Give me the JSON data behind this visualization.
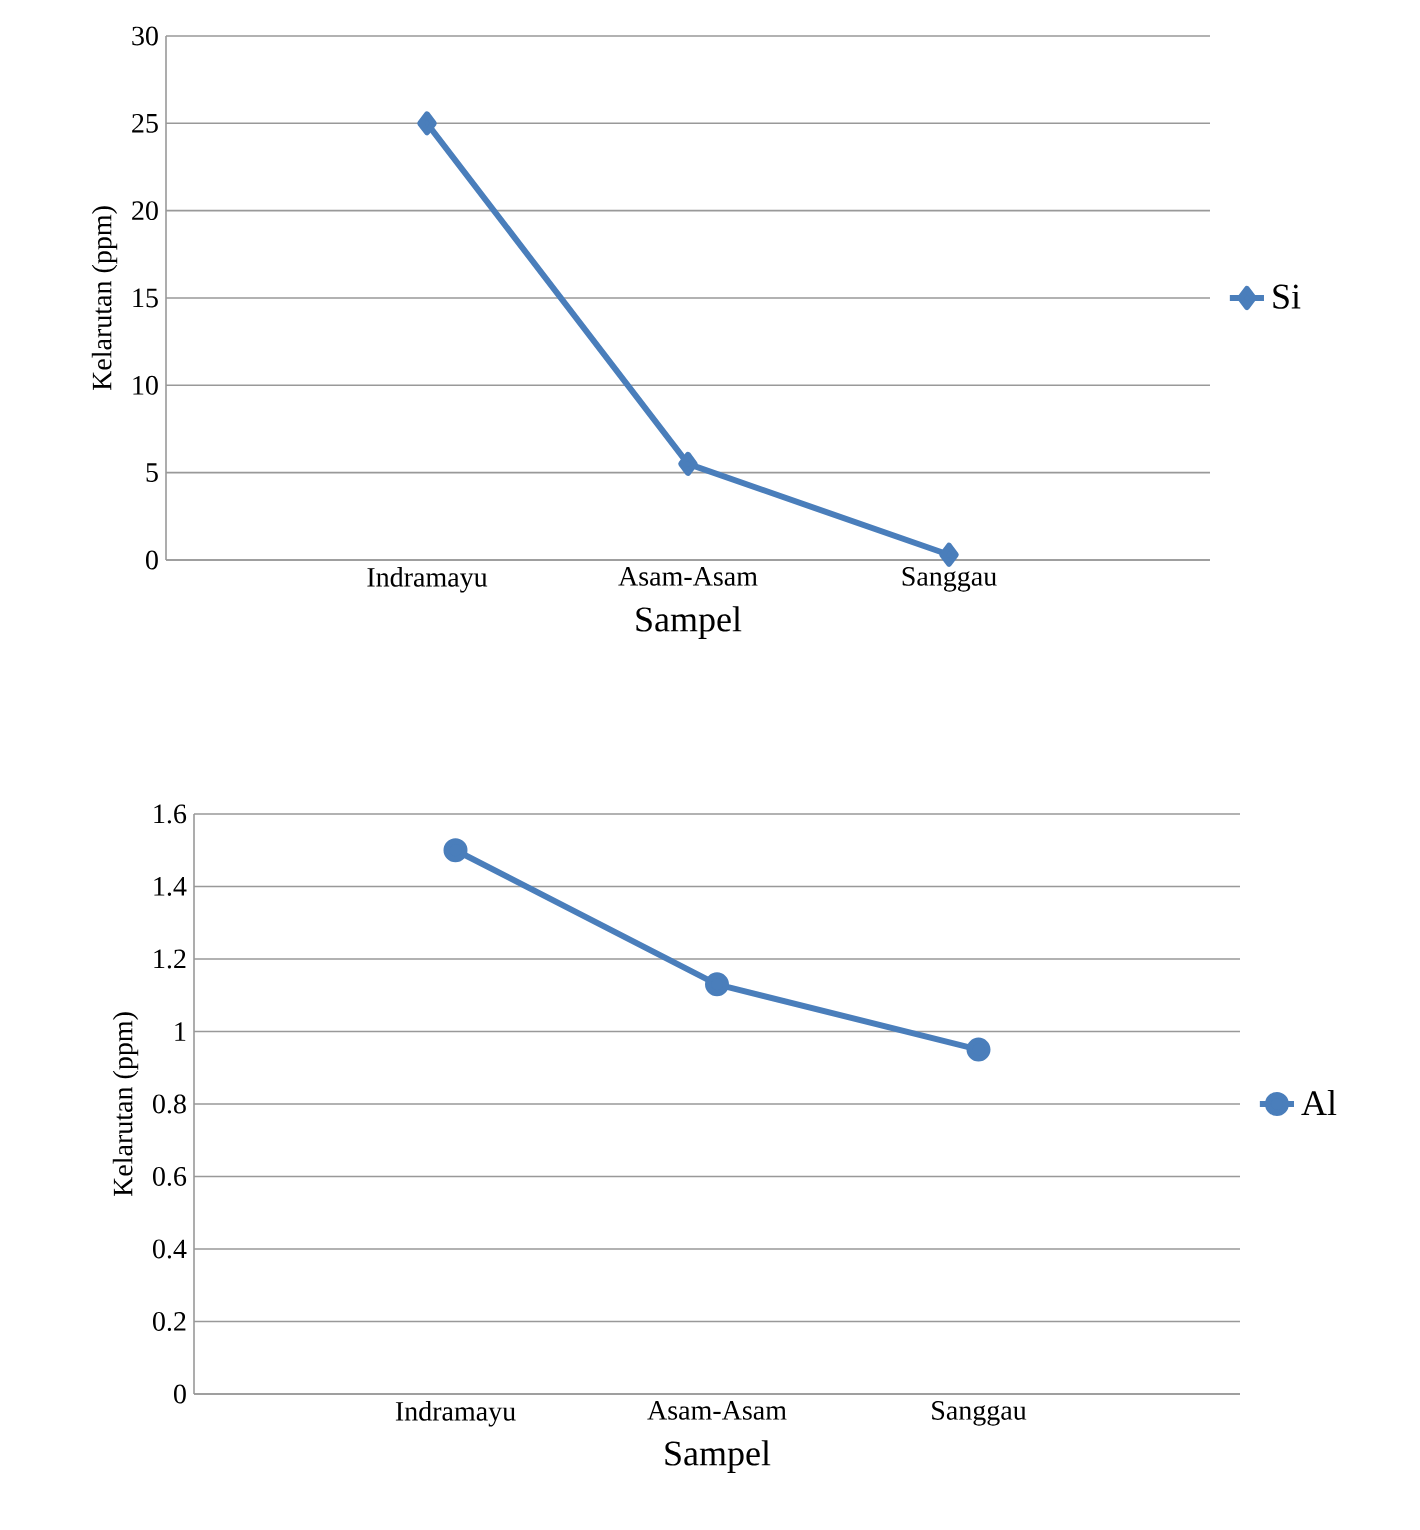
{
  "chart_data": [
    {
      "type": "line",
      "xlabel": "Sampel",
      "ylabel": "Kelarutan (ppm)",
      "categories": [
        "Indramayu",
        "Asam-Asam",
        "Sanggau"
      ],
      "series": [
        {
          "name": "Si",
          "color": "#4a7ebb",
          "values": [
            25,
            5.5,
            0.3
          ]
        }
      ],
      "ylim": [
        0,
        30
      ],
      "yticks": [
        0,
        5,
        10,
        15,
        20,
        25,
        30
      ],
      "grid": "y",
      "legend": "right",
      "marker": "diamond",
      "line_style": "solid"
    },
    {
      "type": "line",
      "xlabel": "Sampel",
      "ylabel": "Kelarutan (ppm)",
      "categories": [
        "Indramayu",
        "Asam-Asam",
        "Sanggau"
      ],
      "series": [
        {
          "name": "Al",
          "color": "#4a7ebb",
          "values": [
            1.5,
            1.13,
            0.95
          ]
        }
      ],
      "ylim": [
        0,
        1.6
      ],
      "yticks": [
        0,
        0.2,
        0.4,
        0.6,
        0.8,
        1,
        1.2,
        1.4,
        1.6
      ],
      "grid": "y",
      "legend": "right",
      "marker": "circle",
      "line_style": "solid"
    }
  ]
}
